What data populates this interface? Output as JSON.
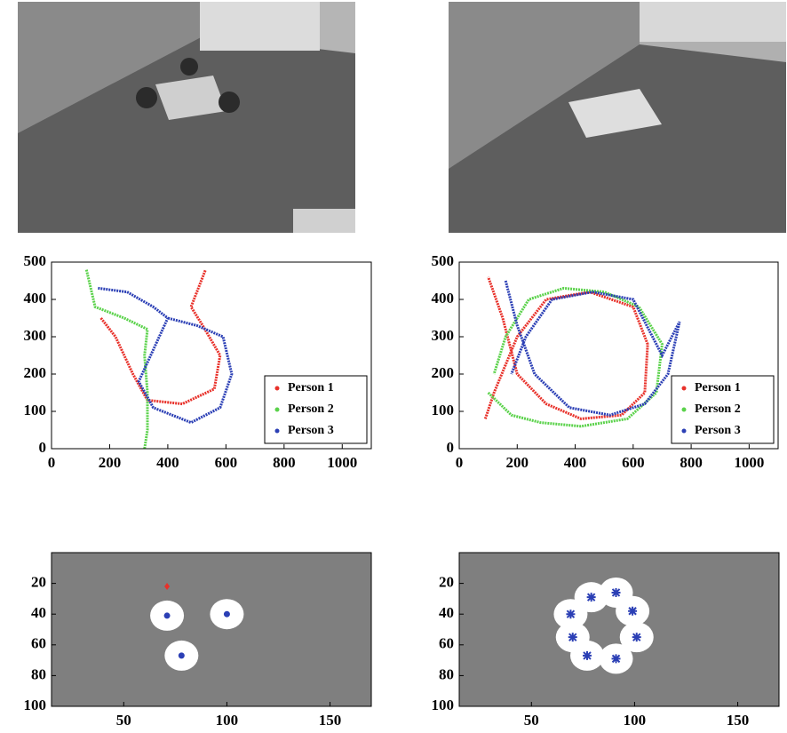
{
  "chart_data": [
    {
      "type": "line",
      "xlim": [
        0,
        1100
      ],
      "ylim": [
        500,
        0
      ],
      "xticks": [
        0,
        200,
        400,
        600,
        800,
        1000
      ],
      "yticks": [
        0,
        100,
        200,
        300,
        400,
        500
      ],
      "legend": "lower right",
      "series": [
        {
          "name": "Person 1",
          "color": "#e8312a",
          "x": [
            170,
            220,
            280,
            330,
            450,
            560,
            580,
            520,
            480,
            500,
            530
          ],
          "y": [
            350,
            300,
            200,
            130,
            120,
            160,
            250,
            330,
            380,
            420,
            480
          ]
        },
        {
          "name": "Person 2",
          "color": "#5ad24a",
          "x": [
            320,
            330,
            330,
            320,
            330,
            250,
            150,
            120
          ],
          "y": [
            0,
            50,
            150,
            250,
            320,
            350,
            380,
            480
          ]
        },
        {
          "name": "Person 3",
          "color": "#2b3fb5",
          "x": [
            160,
            260,
            350,
            400,
            300,
            350,
            480,
            580,
            620,
            590,
            500,
            400
          ],
          "y": [
            430,
            420,
            380,
            350,
            180,
            110,
            70,
            110,
            200,
            300,
            330,
            350
          ]
        }
      ]
    },
    {
      "type": "line",
      "xlim": [
        0,
        1100
      ],
      "ylim": [
        500,
        0
      ],
      "xticks": [
        0,
        200,
        400,
        600,
        800,
        1000
      ],
      "yticks": [
        0,
        100,
        200,
        300,
        400,
        500
      ],
      "legend": "lower right",
      "series": [
        {
          "name": "Person 1",
          "color": "#e8312a",
          "x": [
            90,
            120,
            200,
            300,
            450,
            600,
            650,
            640,
            560,
            420,
            300,
            200,
            150,
            100
          ],
          "y": [
            80,
            150,
            300,
            400,
            420,
            380,
            280,
            150,
            90,
            80,
            120,
            200,
            350,
            460
          ]
        },
        {
          "name": "Person 2",
          "color": "#5ad24a",
          "x": [
            100,
            180,
            280,
            420,
            580,
            680,
            700,
            620,
            500,
            360,
            240,
            160,
            120
          ],
          "y": [
            150,
            90,
            70,
            60,
            80,
            150,
            280,
            380,
            420,
            430,
            400,
            300,
            200
          ]
        },
        {
          "name": "Person 3",
          "color": "#2b3fb5",
          "x": [
            160,
            200,
            260,
            380,
            520,
            640,
            720,
            760,
            700,
            600,
            460,
            320,
            230,
            180
          ],
          "y": [
            450,
            330,
            200,
            110,
            90,
            120,
            200,
            340,
            250,
            400,
            420,
            400,
            300,
            200
          ]
        }
      ]
    },
    {
      "type": "scatter",
      "xlim": [
        15,
        170
      ],
      "ylim": [
        0,
        100
      ],
      "xticks": [
        50,
        100,
        150
      ],
      "yticks": [
        20,
        40,
        60,
        80,
        100
      ],
      "series": [
        {
          "color": "#e8312a",
          "marker": "diamond",
          "x": [
            71
          ],
          "y": [
            22
          ]
        },
        {
          "color": "#2b3fb5",
          "marker": "dot",
          "x": [
            71,
            100,
            78
          ],
          "y": [
            41,
            40,
            67
          ]
        }
      ]
    },
    {
      "type": "scatter",
      "xlim": [
        15,
        170
      ],
      "ylim": [
        0,
        100
      ],
      "xticks": [
        50,
        100,
        150
      ],
      "yticks": [
        20,
        40,
        60,
        80,
        100
      ],
      "series": [
        {
          "color": "#2b3fb5",
          "marker": "star",
          "x": [
            79,
            91,
            99,
            69,
            70,
            101,
            77,
            91
          ],
          "y": [
            29,
            26,
            38,
            40,
            55,
            55,
            67,
            69
          ]
        }
      ]
    }
  ]
}
